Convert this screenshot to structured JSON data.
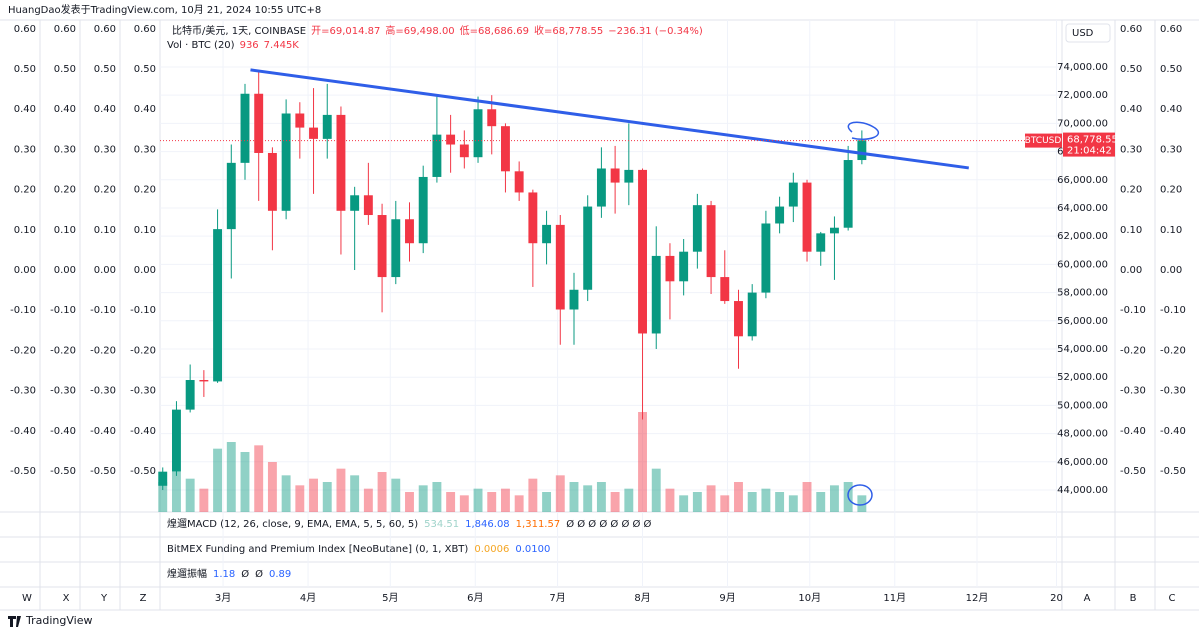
{
  "header": {
    "publisher": "HuangDao发表于TradingView.com, 10月 21, 2024 10:55 UTC+8"
  },
  "legend": {
    "symbol": "比特币/美元, 1天, COINBASE",
    "open": "开=69,014.87",
    "high": "高=69,498.00",
    "low": "低=68,686.69",
    "close": "收=68,778.55",
    "change": "−236.31 (−0.34%)",
    "volume_name": "Vol · BTC (20)",
    "volume_values": [
      "936",
      "7.445K"
    ]
  },
  "currency": "USD",
  "last_price": {
    "value": 68778.55,
    "label": "68,778.55",
    "symbol": "BTCUSD",
    "countdown": "21:04:42"
  },
  "indicators": [
    {
      "name": "煌遛MACD (12, 26, close, 9, EMA, EMA, 5, 5, 60, 5)",
      "values": [
        {
          "text": "534.51",
          "color": "#9fd3ca"
        },
        {
          "text": "1,846.08",
          "color": "#2962ff"
        },
        {
          "text": "1,311.57",
          "color": "#ff6d00"
        },
        {
          "text": "Ø Ø Ø Ø Ø Ø Ø Ø",
          "color": "#131722"
        }
      ]
    },
    {
      "name": "BitMEX Funding and Premium Index [NeoButane] (0, 1, XBT)",
      "values": [
        {
          "text": "0.0006",
          "color": "#f5a623"
        },
        {
          "text": "0.0100",
          "color": "#2962ff"
        }
      ]
    },
    {
      "name": "煌遛振幅",
      "values": [
        {
          "text": "1.18",
          "color": "#2962ff"
        },
        {
          "text": "Ø",
          "color": "#131722"
        },
        {
          "text": "Ø",
          "color": "#131722"
        },
        {
          "text": "0.89",
          "color": "#2962ff"
        }
      ]
    }
  ],
  "pane_scale": {
    "lim": [
      -0.602,
      0.622
    ],
    "ticks": [
      {
        "value": 0.6,
        "label": "0.60"
      },
      {
        "value": 0.5,
        "label": "0.50"
      },
      {
        "value": 0.4,
        "label": "0.40"
      },
      {
        "value": 0.3,
        "label": "0.30"
      },
      {
        "value": 0.2,
        "label": "0.20"
      },
      {
        "value": 0.1,
        "label": "0.10"
      },
      {
        "value": 0,
        "label": "0.00"
      },
      {
        "value": -0.1,
        "label": "-0.10"
      },
      {
        "value": -0.2,
        "label": "-0.20"
      },
      {
        "value": -0.3,
        "label": "-0.30"
      },
      {
        "value": -0.4,
        "label": "-0.40"
      },
      {
        "value": -0.5,
        "label": "-0.50"
      }
    ]
  },
  "pane_letters": {
    "left": [
      "W",
      "X",
      "Y",
      "Z"
    ],
    "right": [
      "A",
      "B",
      "C"
    ]
  },
  "footer": "TradingView",
  "chart_data": {
    "type": "candlestick",
    "up_color": "#089981",
    "down_color": "#f23645",
    "x": [
      0,
      5,
      10,
      15,
      20,
      25,
      30,
      35,
      40,
      45,
      50,
      55,
      60,
      65,
      70,
      75,
      80,
      85,
      90,
      95,
      100,
      105,
      110,
      115,
      120,
      125,
      130,
      135,
      140,
      145,
      150,
      155,
      160,
      165,
      170,
      175,
      180,
      185,
      190,
      195,
      200,
      205,
      210,
      215,
      220,
      225,
      230,
      235,
      240,
      245,
      250,
      255
    ],
    "open": [
      44300,
      45300,
      49700,
      51800,
      51700,
      62500,
      67200,
      72100,
      67900,
      63800,
      70700,
      69700,
      68900,
      70600,
      63800,
      64900,
      63500,
      59100,
      63200,
      61500,
      66200,
      69200,
      68500,
      67600,
      71000,
      69800,
      66600,
      65100,
      61500,
      62800,
      56800,
      58200,
      64100,
      66800,
      65800,
      66700,
      55100,
      60600,
      58800,
      60900,
      64200,
      59100,
      57400,
      54900,
      58000,
      62900,
      64100,
      65800,
      60900,
      62200,
      62600,
      67400
    ],
    "high": [
      45600,
      50300,
      52900,
      52500,
      63900,
      68500,
      72800,
      73800,
      68300,
      71700,
      71500,
      72500,
      72800,
      71200,
      65500,
      67200,
      64300,
      64500,
      64400,
      67000,
      71900,
      70600,
      69500,
      71900,
      72000,
      70000,
      67300,
      65300,
      63800,
      63500,
      59400,
      64900,
      68300,
      68400,
      70000,
      66800,
      62700,
      61500,
      61800,
      65000,
      64500,
      61000,
      58200,
      58600,
      63800,
      64800,
      66500,
      66000,
      62300,
      63400,
      68400,
      69500
    ],
    "low": [
      44000,
      45000,
      49500,
      50600,
      51600,
      59000,
      66000,
      64500,
      61000,
      63200,
      67500,
      65000,
      67500,
      60700,
      59600,
      62800,
      56600,
      58600,
      60200,
      60800,
      65800,
      66500,
      66800,
      67200,
      67800,
      65100,
      64500,
      58400,
      60000,
      54300,
      54300,
      57400,
      63300,
      63600,
      64200,
      49000,
      54000,
      56100,
      57800,
      59700,
      57900,
      57200,
      52600,
      54600,
      57600,
      62200,
      63000,
      60200,
      59900,
      58900,
      62400,
      67100
    ],
    "close": [
      45300,
      49700,
      51800,
      51700,
      62500,
      67200,
      72100,
      67900,
      63800,
      70700,
      69700,
      68900,
      70600,
      63800,
      64900,
      63500,
      59100,
      63200,
      61500,
      66200,
      69200,
      68500,
      67600,
      71000,
      69800,
      66600,
      65100,
      61500,
      62800,
      56800,
      58200,
      64100,
      66800,
      65800,
      66700,
      55100,
      60600,
      58800,
      60900,
      64200,
      59100,
      57400,
      54900,
      58000,
      62900,
      64100,
      65800,
      60900,
      62200,
      62600,
      67400,
      68800
    ],
    "volume": [
      18,
      24,
      20,
      14,
      38,
      42,
      36,
      40,
      30,
      22,
      16,
      20,
      18,
      26,
      22,
      14,
      24,
      20,
      12,
      16,
      18,
      12,
      10,
      14,
      12,
      14,
      10,
      20,
      12,
      22,
      18,
      16,
      18,
      12,
      14,
      60,
      26,
      14,
      10,
      12,
      16,
      10,
      18,
      12,
      14,
      12,
      10,
      18,
      12,
      16,
      18,
      10
    ],
    "xlim": [
      -1,
      328
    ],
    "ylim": [
      42440,
      77330
    ],
    "xticks": [
      {
        "value": 22,
        "label": "3月"
      },
      {
        "value": 53,
        "label": "4月"
      },
      {
        "value": 83,
        "label": "5月"
      },
      {
        "value": 114,
        "label": "6月"
      },
      {
        "value": 144,
        "label": "7月"
      },
      {
        "value": 175,
        "label": "8月"
      },
      {
        "value": 206,
        "label": "9月"
      },
      {
        "value": 236,
        "label": "10月"
      },
      {
        "value": 267,
        "label": "11月"
      },
      {
        "value": 297,
        "label": "12月"
      },
      {
        "value": 326,
        "label": "20"
      }
    ],
    "yticks": [
      {
        "value": 44000,
        "label": "44,000.00"
      },
      {
        "value": 46000,
        "label": "46,000.00"
      },
      {
        "value": 48000,
        "label": "48,000.00"
      },
      {
        "value": 50000,
        "label": "50,000.00"
      },
      {
        "value": 52000,
        "label": "52,000.00"
      },
      {
        "value": 54000,
        "label": "54,000.00"
      },
      {
        "value": 56000,
        "label": "56,000.00"
      },
      {
        "value": 58000,
        "label": "58,000.00"
      },
      {
        "value": 60000,
        "label": "60,000.00"
      },
      {
        "value": 62000,
        "label": "62,000.00"
      },
      {
        "value": 64000,
        "label": "64,000.00"
      },
      {
        "value": 66000,
        "label": "66,000.00"
      },
      {
        "value": 68000,
        "label": "68,000.00"
      },
      {
        "value": 70000,
        "label": "70,000.00"
      },
      {
        "value": 72000,
        "label": "72,000.00"
      },
      {
        "value": 74000,
        "label": "74,000.00"
      }
    ],
    "grid": true,
    "trendline": {
      "color": "#2f5ee8",
      "x": [
        32,
        294
      ],
      "y": [
        73790,
        66840
      ]
    }
  }
}
